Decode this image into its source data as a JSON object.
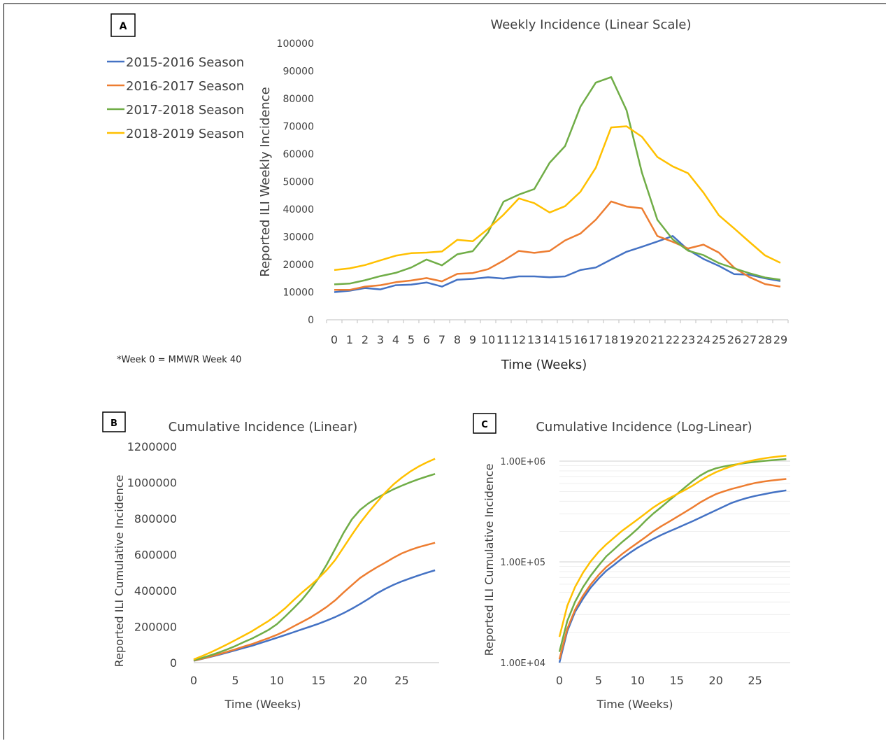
{
  "colors": {
    "s1": "#4472C4",
    "s2": "#ED7D31",
    "s3": "#70AD47",
    "s4": "#FFC000",
    "text": "#404040",
    "axis": "#bfbfbf",
    "grid": "#d9d9d9"
  },
  "footnote": "*Week 0 = MMWR Week 40",
  "legend": [
    "2015-2016 Season",
    "2016-2017 Season",
    "2017-2018 Season",
    "2018-2019 Season"
  ],
  "chart_data": [
    {
      "panel": "A",
      "type": "line",
      "title": "Weekly Incidence (Linear Scale)",
      "xlabel": "Time (Weeks)",
      "ylabel": "Reported ILI Weekly Incidence",
      "x": [
        0,
        1,
        2,
        3,
        4,
        5,
        6,
        7,
        8,
        9,
        10,
        11,
        12,
        13,
        14,
        15,
        16,
        17,
        18,
        19,
        20,
        21,
        22,
        23,
        24,
        25,
        26,
        27,
        28,
        29
      ],
      "xticks": [
        "0",
        "1",
        "2",
        "3",
        "4",
        "5",
        "6",
        "7",
        "8",
        "9",
        "10",
        "11",
        "12",
        "13",
        "14",
        "15",
        "16",
        "17",
        "18",
        "19",
        "20",
        "21",
        "22",
        "23",
        "24",
        "25",
        "26",
        "27",
        "28",
        "29"
      ],
      "ylim": [
        0,
        100000
      ],
      "yticks": [
        "0",
        "10000",
        "20000",
        "30000",
        "40000",
        "50000",
        "60000",
        "70000",
        "80000",
        "90000",
        "100000"
      ],
      "legend_position": "top-left",
      "series": [
        {
          "name": "2015-2016 Season",
          "values": [
            10000,
            10500,
            11500,
            11000,
            12500,
            12700,
            13500,
            12000,
            14500,
            14800,
            15400,
            14900,
            15700,
            15700,
            15400,
            15700,
            18000,
            18900,
            21800,
            24600,
            26400,
            28300,
            30300,
            25300,
            22000,
            19500,
            16500,
            16300,
            15000,
            14000
          ]
        },
        {
          "name": "2016-2017 Season",
          "values": [
            10800,
            10800,
            12000,
            12500,
            13600,
            14200,
            15100,
            13900,
            16600,
            16900,
            18300,
            21400,
            24900,
            24200,
            24900,
            28700,
            31200,
            36200,
            42800,
            41000,
            40300,
            30300,
            28200,
            25800,
            27200,
            24300,
            18800,
            15400,
            12900,
            12000
          ]
        },
        {
          "name": "2017-2018 Season",
          "values": [
            12800,
            13100,
            14300,
            15800,
            17000,
            18900,
            21800,
            19700,
            23700,
            24800,
            31600,
            42700,
            45300,
            47300,
            56800,
            62800,
            77100,
            85800,
            87800,
            75800,
            53200,
            36200,
            29100,
            25000,
            23400,
            20500,
            18600,
            16800,
            15300,
            14500
          ]
        },
        {
          "name": "2018-2019 Season",
          "values": [
            18000,
            18600,
            19800,
            21500,
            23200,
            24100,
            24300,
            24700,
            28900,
            28400,
            32900,
            38000,
            43900,
            42200,
            38800,
            41100,
            46300,
            55000,
            69600,
            70000,
            66200,
            58900,
            55500,
            53000,
            46000,
            37800,
            33000,
            28100,
            23300,
            20600
          ]
        }
      ]
    },
    {
      "panel": "B",
      "type": "line",
      "title": "Cumulative Incidence (Linear)",
      "xlabel": "Time (Weeks)",
      "ylabel": "Reported ILI Cumulative Incidence",
      "xlim": [
        0,
        29
      ],
      "xticks": [
        "0",
        "5",
        "10",
        "15",
        "20",
        "25"
      ],
      "ylim": [
        0,
        1200000
      ],
      "yticks": [
        "0",
        "200000",
        "400000",
        "600000",
        "800000",
        "1000000",
        "1200000"
      ],
      "series": [
        {
          "name": "2015-2016 Season",
          "values": [
            10000,
            20500,
            32000,
            43000,
            55500,
            68200,
            81700,
            93700,
            108200,
            123000,
            138400,
            153300,
            169000,
            184700,
            200100,
            215800,
            233800,
            252700,
            274500,
            299100,
            325500,
            353800,
            384100,
            409400,
            431400,
            450900,
            467400,
            483700,
            498700,
            512700
          ]
        },
        {
          "name": "2016-2017 Season",
          "values": [
            10800,
            21600,
            33600,
            46100,
            59700,
            73900,
            89000,
            102900,
            119500,
            136400,
            154700,
            176100,
            201000,
            225200,
            250100,
            278800,
            310000,
            346200,
            389000,
            430000,
            470300,
            500600,
            528800,
            554600,
            581800,
            606100,
            624900,
            640300,
            653200,
            665200
          ]
        },
        {
          "name": "2017-2018 Season",
          "values": [
            12800,
            25900,
            40200,
            56000,
            73000,
            91900,
            113700,
            133400,
            157100,
            181900,
            213500,
            256200,
            301500,
            348800,
            405600,
            468400,
            545500,
            631300,
            719100,
            794900,
            848100,
            884300,
            913400,
            938400,
            961800,
            982300,
            1000900,
            1017700,
            1033000,
            1047500
          ]
        },
        {
          "name": "2018-2019 Season",
          "values": [
            18000,
            36600,
            56400,
            77900,
            101100,
            125200,
            149500,
            174200,
            203100,
            231500,
            264400,
            302400,
            346300,
            388500,
            427300,
            468400,
            514700,
            569700,
            639300,
            709300,
            775500,
            834400,
            889900,
            942900,
            988900,
            1026700,
            1059700,
            1087800,
            1111100,
            1131700
          ]
        }
      ]
    },
    {
      "panel": "C",
      "type": "line",
      "title": "Cumulative Incidence (Log-Linear)",
      "xlabel": "Time (Weeks)",
      "ylabel": "Reported ILI Cumulative Incidence",
      "yscale": "log",
      "xlim": [
        0,
        29
      ],
      "xticks": [
        "0",
        "5",
        "10",
        "15",
        "20",
        "25"
      ],
      "ylim": [
        10000,
        1500000
      ],
      "yticks": [
        "1.00E+04",
        "1.00E+05",
        "1.00E+06"
      ],
      "series_ref": "same cumulative values as panel B"
    }
  ]
}
